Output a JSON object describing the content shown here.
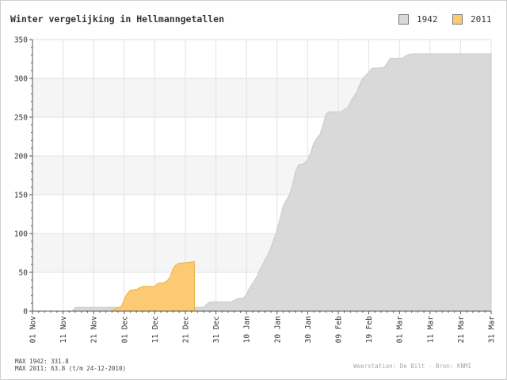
{
  "chart_data": {
    "type": "area",
    "title": "Winter vergelijking in Hellmanngetallen",
    "xlabel": "",
    "ylabel": "",
    "ylim": [
      0,
      350
    ],
    "yticks": [
      0,
      50,
      100,
      150,
      200,
      250,
      300,
      350
    ],
    "x_tick_labels": [
      "01 Nov",
      "11 Nov",
      "21 Nov",
      "01 Dec",
      "11 Dec",
      "21 Dec",
      "31 Dec",
      "10 Jan",
      "20 Jan",
      "30 Jan",
      "09 Feb",
      "19 Feb",
      "01 Mar",
      "11 Mar",
      "21 Mar",
      "31 Mar"
    ],
    "x_domain_days": [
      0,
      150
    ],
    "grid": true,
    "legend_position": "top-right",
    "series": [
      {
        "name": "1942",
        "color": "#d9d9d9",
        "points": [
          [
            0,
            0
          ],
          [
            13,
            0
          ],
          [
            14,
            5
          ],
          [
            26,
            5
          ],
          [
            27,
            5
          ],
          [
            30,
            5
          ],
          [
            31,
            5
          ],
          [
            56,
            5
          ],
          [
            57,
            9
          ],
          [
            58,
            12
          ],
          [
            65,
            12
          ],
          [
            66,
            14
          ],
          [
            67,
            16
          ],
          [
            69,
            17
          ],
          [
            70,
            22
          ],
          [
            71,
            30
          ],
          [
            73,
            42
          ],
          [
            75,
            58
          ],
          [
            77,
            73
          ],
          [
            78,
            82
          ],
          [
            80,
            105
          ],
          [
            81,
            120
          ],
          [
            82,
            136
          ],
          [
            84,
            150
          ],
          [
            85,
            162
          ],
          [
            86,
            180
          ],
          [
            87,
            189
          ],
          [
            88,
            189
          ],
          [
            89,
            191
          ],
          [
            90,
            195
          ],
          [
            91,
            205
          ],
          [
            92,
            217
          ],
          [
            93,
            223
          ],
          [
            94,
            228
          ],
          [
            95,
            240
          ],
          [
            96,
            254
          ],
          [
            97,
            257
          ],
          [
            99,
            257
          ],
          [
            101,
            257
          ],
          [
            102,
            260
          ],
          [
            103,
            262
          ],
          [
            104,
            270
          ],
          [
            105,
            276
          ],
          [
            106,
            282
          ],
          [
            107,
            292
          ],
          [
            108,
            300
          ],
          [
            110,
            308
          ],
          [
            111,
            313
          ],
          [
            115,
            314
          ],
          [
            116,
            320
          ],
          [
            117,
            326
          ],
          [
            121,
            326
          ],
          [
            122,
            329
          ],
          [
            123,
            331
          ],
          [
            125,
            331.8
          ],
          [
            150,
            331.8
          ]
        ]
      },
      {
        "name": "2011",
        "color": "#fcca72",
        "points": [
          [
            0,
            0
          ],
          [
            26,
            0
          ],
          [
            27,
            3
          ],
          [
            29,
            6
          ],
          [
            30,
            15
          ],
          [
            31,
            23
          ],
          [
            32,
            27
          ],
          [
            34,
            28
          ],
          [
            36,
            32
          ],
          [
            40,
            32
          ],
          [
            41,
            36
          ],
          [
            43,
            37
          ],
          [
            44,
            39
          ],
          [
            45,
            44
          ],
          [
            46,
            55
          ],
          [
            47,
            60
          ],
          [
            48,
            62
          ],
          [
            49,
            62
          ],
          [
            53,
            63.8
          ]
        ]
      }
    ],
    "legend": [
      "1942",
      "2011"
    ],
    "footer": {
      "max_1942": "MAX 1942: 331.8",
      "max_2011": "MAX 2011: 63.8 (t/m 24-12-2010)",
      "source": "Weerstation: De Bilt  -  Bron: KNMI"
    }
  }
}
